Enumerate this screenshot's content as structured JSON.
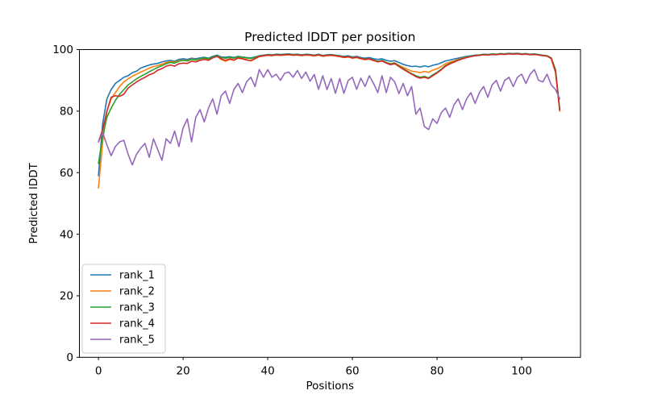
{
  "chart_data": {
    "type": "line",
    "title": "Predicted lDDT per position",
    "xlabel": "Positions",
    "ylabel": "Predicted lDDT",
    "xlim": [
      -4.5,
      113.9
    ],
    "ylim": [
      0,
      100
    ],
    "xticks": [
      0,
      20,
      40,
      60,
      80,
      100
    ],
    "yticks": [
      0,
      20,
      40,
      60,
      80,
      100
    ],
    "grid": false,
    "legend_position": "lower-left",
    "x_start": 0,
    "x_step": 1,
    "series": [
      {
        "name": "rank_1",
        "color": "#1f77b4",
        "values": [
          59,
          76,
          84,
          87,
          89,
          90,
          91,
          91.5,
          92.5,
          93,
          94,
          94.5,
          95,
          95.3,
          95.5,
          96,
          96.3,
          96.5,
          96.2,
          96.8,
          97,
          96.8,
          97.2,
          97,
          97.3,
          97.5,
          97.2,
          97.8,
          98.2,
          97.6,
          97.5,
          97.7,
          97.4,
          97.8,
          97.6,
          97.4,
          97.3,
          97.6,
          98,
          98.2,
          98.4,
          98.3,
          98.5,
          98.4,
          98.5,
          98.6,
          98.4,
          98.5,
          98.3,
          98.5,
          98.4,
          98.2,
          98.5,
          98.1,
          98.3,
          98.4,
          98.2,
          98,
          97.8,
          98,
          97.6,
          97.8,
          97.4,
          97.2,
          97.4,
          97,
          96.8,
          97,
          96.5,
          96.2,
          96.4,
          95.8,
          95.2,
          94.8,
          94.5,
          94.6,
          94.3,
          94.7,
          94.4,
          94.9,
          95.2,
          95.7,
          96.3,
          96.6,
          96.9,
          97.2,
          97.5,
          97.8,
          98,
          98.2,
          98.3,
          98.5,
          98.4,
          98.6,
          98.5,
          98.7,
          98.6,
          98.8,
          98.7,
          98.8,
          98.6,
          98.7,
          98.5,
          98.6,
          98.4,
          98.2,
          98,
          97.2,
          93,
          80.5
        ]
      },
      {
        "name": "rank_2",
        "color": "#ff7f0e",
        "values": [
          55,
          70,
          80,
          84,
          86,
          88,
          89.5,
          90.5,
          91.3,
          92,
          92.7,
          93.3,
          94,
          94.5,
          94.8,
          95.3,
          95.8,
          96.1,
          95.9,
          96.4,
          96.6,
          96.4,
          96.9,
          96.7,
          97,
          97.2,
          96.9,
          97.5,
          97.9,
          96.8,
          96.2,
          96.8,
          96.5,
          97.2,
          97,
          96.8,
          96.3,
          97,
          97.7,
          97.9,
          98.1,
          98,
          98.2,
          98.1,
          98.2,
          98.3,
          98.1,
          98.2,
          98,
          98.2,
          98.1,
          97.9,
          98.2,
          97.8,
          98,
          98.1,
          97.9,
          97.7,
          97.4,
          97.6,
          97.2,
          97.4,
          97,
          96.7,
          96.9,
          96.4,
          96.1,
          96.4,
          95.8,
          95.4,
          95.7,
          94.9,
          94.2,
          93.6,
          93,
          92.8,
          92.5,
          92.9,
          92.6,
          93.3,
          93.8,
          94.5,
          95.4,
          95.9,
          96.3,
          96.8,
          97.2,
          97.6,
          97.8,
          98,
          98.2,
          98.4,
          98.3,
          98.5,
          98.4,
          98.6,
          98.5,
          98.7,
          98.6,
          98.7,
          98.5,
          98.6,
          98.4,
          98.5,
          98.3,
          98.1,
          97.9,
          97,
          92.5,
          80
        ]
      },
      {
        "name": "rank_3",
        "color": "#2ca02c",
        "values": [
          63,
          72,
          78,
          81,
          83.5,
          85.5,
          87,
          88.5,
          89.5,
          90.5,
          91.3,
          92,
          92.8,
          93.5,
          94.2,
          94.8,
          95.4,
          95.8,
          95.6,
          96.2,
          96.5,
          96.3,
          96.8,
          96.6,
          97,
          97.3,
          97,
          97.6,
          98,
          97.4,
          97.2,
          97.5,
          97.2,
          97.7,
          97.5,
          97.3,
          97.1,
          97.5,
          97.9,
          98.1,
          98.3,
          98.2,
          98.4,
          98.3,
          98.4,
          98.5,
          98.3,
          98.4,
          98.2,
          98.4,
          98.3,
          98.1,
          98.4,
          98,
          98.2,
          98.3,
          98.1,
          97.9,
          97.6,
          97.8,
          97.4,
          97.6,
          97.2,
          96.9,
          97.1,
          96.6,
          96.2,
          96.5,
          95.8,
          95.3,
          95.6,
          94.7,
          93.8,
          93,
          92.2,
          91.5,
          91,
          91.3,
          90.8,
          91.8,
          92.6,
          93.6,
          94.8,
          95.5,
          96,
          96.6,
          97.1,
          97.5,
          97.8,
          98,
          98.2,
          98.4,
          98.3,
          98.5,
          98.4,
          98.6,
          98.5,
          98.7,
          98.6,
          98.7,
          98.5,
          98.6,
          98.4,
          98.5,
          98.3,
          98.1,
          98,
          97.3,
          93.5,
          80.5
        ]
      },
      {
        "name": "rank_4",
        "color": "#d62728",
        "values": [
          70,
          74,
          80,
          84.5,
          85,
          84.8,
          85.5,
          87.5,
          88.5,
          89.5,
          90.3,
          91,
          91.8,
          92.3,
          93.3,
          93.8,
          94.6,
          95,
          94.6,
          95.4,
          95.6,
          95.5,
          96.2,
          96,
          96.5,
          96.8,
          96.5,
          97.3,
          97.8,
          97,
          96.5,
          97,
          96.6,
          97.3,
          97,
          96.6,
          96.4,
          97.1,
          97.8,
          98,
          98.2,
          98.1,
          98.3,
          98.2,
          98.3,
          98.4,
          98.2,
          98.3,
          98.1,
          98.3,
          98.2,
          98,
          98.3,
          97.9,
          98.1,
          98.2,
          98,
          97.8,
          97.5,
          97.7,
          97.3,
          97.5,
          97.1,
          96.8,
          97,
          96.5,
          96,
          96.3,
          95.6,
          95.1,
          95.4,
          94.5,
          93.6,
          92.8,
          92,
          91.2,
          90.7,
          91,
          90.6,
          91.5,
          92.4,
          93.4,
          94.6,
          95.3,
          95.9,
          96.5,
          97,
          97.4,
          97.7,
          98,
          98.1,
          98.3,
          98.2,
          98.4,
          98.3,
          98.5,
          98.4,
          98.6,
          98.5,
          98.6,
          98.4,
          98.5,
          98.3,
          98.4,
          98.2,
          98,
          97.9,
          97.1,
          92.8,
          80.2
        ]
      },
      {
        "name": "rank_5",
        "color": "#9467bd",
        "values": [
          70,
          73,
          69,
          65.5,
          68.5,
          70,
          70.5,
          66,
          62.5,
          66,
          68,
          69.5,
          65,
          71,
          67.5,
          64,
          71,
          69.5,
          73.5,
          68.5,
          74.5,
          77.5,
          70,
          78,
          80.5,
          76.5,
          81,
          84,
          79,
          85,
          86.5,
          82.5,
          87,
          89,
          86,
          89.5,
          91,
          88,
          93.5,
          91,
          93.5,
          91,
          92,
          90,
          92.3,
          92.7,
          91,
          93.2,
          90.6,
          92.7,
          89.7,
          91.9,
          87.1,
          91.5,
          87,
          90.6,
          85.8,
          90.6,
          85.8,
          89.9,
          91,
          87.1,
          90.7,
          88,
          91.5,
          89,
          86,
          91.5,
          86,
          91,
          89.5,
          85.7,
          89,
          85,
          88,
          79,
          81,
          75,
          74,
          77.5,
          76,
          79.5,
          81,
          78,
          82,
          84,
          80.5,
          84,
          86,
          82.5,
          86,
          88,
          84.5,
          88.5,
          90,
          86.5,
          90,
          91,
          88,
          91,
          92,
          89,
          92,
          93.5,
          90,
          89.5,
          92,
          88.5,
          87,
          84
        ]
      }
    ]
  }
}
